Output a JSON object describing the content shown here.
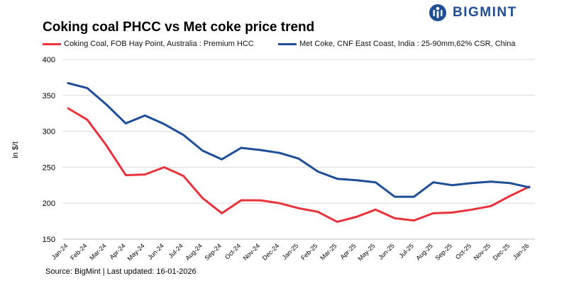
{
  "title": "Coking coal PHCC vs Met coke price trend",
  "brand": {
    "name": "BIGMINT",
    "color": "#1f4e98",
    "icon": "bigmint-logo-icon"
  },
  "source": "Source: BigMint | Last updated: 16-01-2026",
  "chart_data": {
    "type": "line",
    "title": "Coking coal PHCC vs Met coke price trend",
    "ylabel": "in $/t",
    "xlabel": "",
    "ylim": [
      150,
      400
    ],
    "yticks": [
      150,
      200,
      250,
      300,
      350,
      400
    ],
    "grid": "horizontal",
    "legend_position": "top",
    "categories": [
      "Jan-24",
      "Feb-24",
      "Mar-24",
      "Apr-24",
      "May-24",
      "Jun-24",
      "Jul-24",
      "Aug-24",
      "Sep-24",
      "Oct-24",
      "Nov-24",
      "Dec-24",
      "Jan-25",
      "Feb-25",
      "Mar-25",
      "Apr-25",
      "May-25",
      "Jun-25",
      "Jul-25",
      "Aug-25",
      "Sep-25",
      "Oct-25",
      "Nov-25",
      "Dec-25",
      "Jan-26"
    ],
    "series": [
      {
        "name": "Coking Coal, FOB Hay Point, Australia : Premium HCC",
        "color": "#e8333a",
        "values": [
          332,
          316,
          280,
          239,
          240,
          250,
          238,
          207,
          186,
          204,
          204,
          200,
          193,
          188,
          174,
          181,
          191,
          179,
          176,
          186,
          187,
          191,
          196,
          210,
          223
        ]
      },
      {
        "name": "Met Coke, CNF East Coast, India : 25-90mm,62% CSR, China",
        "color": "#1f4e98",
        "values": [
          367,
          360,
          337,
          311,
          322,
          310,
          295,
          273,
          261,
          277,
          274,
          270,
          262,
          244,
          234,
          232,
          229,
          209,
          209,
          229,
          225,
          228,
          230,
          228,
          222
        ]
      }
    ]
  }
}
